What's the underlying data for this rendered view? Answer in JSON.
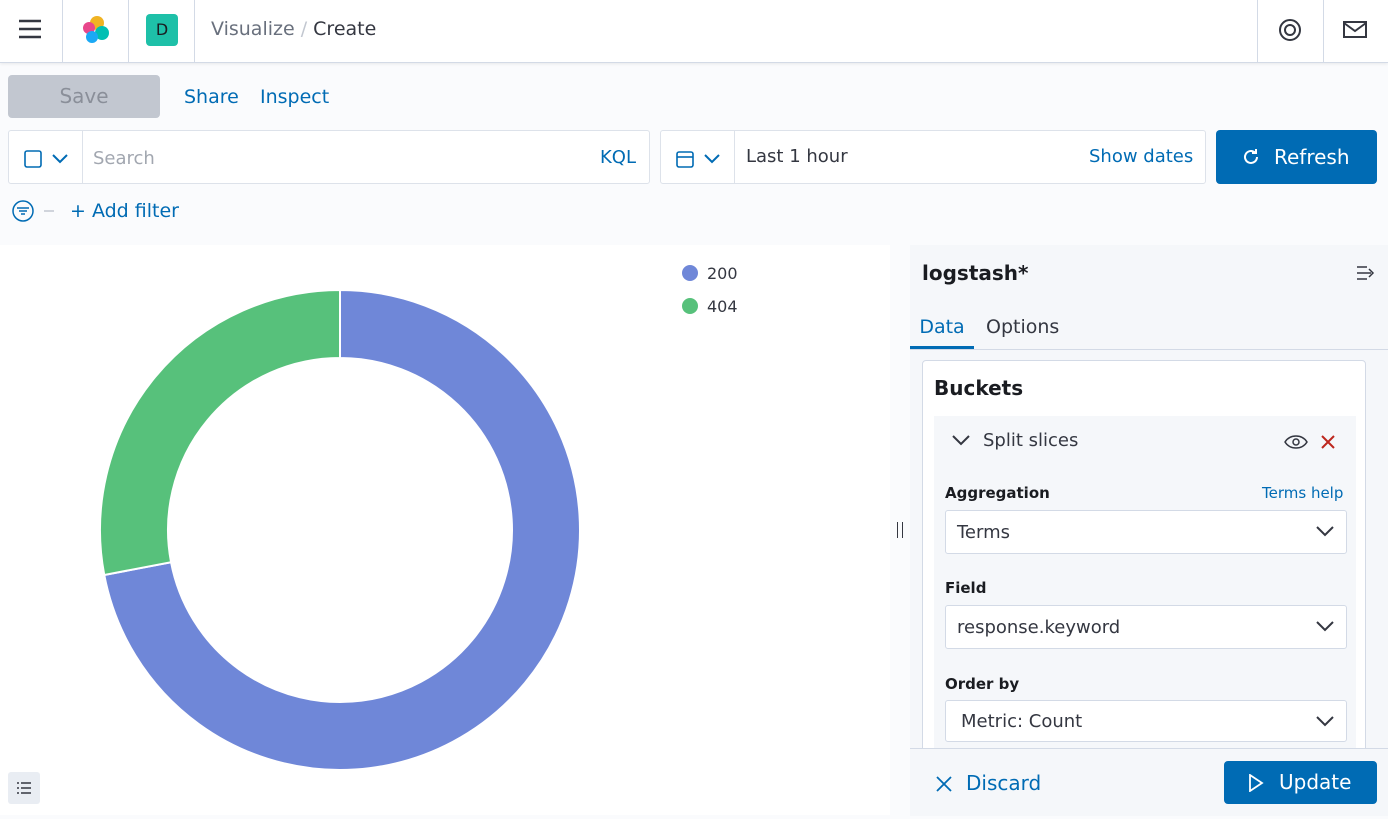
{
  "header": {
    "breadcrumbs": [
      "Visualize",
      "Create"
    ],
    "space_initial": "D"
  },
  "toolbar": {
    "save": "Save",
    "share": "Share",
    "inspect": "Inspect"
  },
  "query_bar": {
    "placeholder": "Search",
    "language": "KQL",
    "time_range": "Last 1 hour",
    "show_dates": "Show dates",
    "refresh": "Refresh",
    "add_filter": "+ Add filter"
  },
  "chart_data": {
    "type": "pie",
    "donut": true,
    "categories": [
      "200",
      "404"
    ],
    "values": [
      72,
      28
    ],
    "colors": [
      "#6f87d8",
      "#57c17b"
    ]
  },
  "sidebar": {
    "index_pattern": "logstash*",
    "tabs": [
      "Data",
      "Options"
    ],
    "section": "Buckets",
    "bucket": "Split slices",
    "fields": [
      {
        "label": "Aggregation",
        "value": "Terms",
        "help": "Terms help"
      },
      {
        "label": "Field",
        "value": "response.keyword"
      },
      {
        "label": "Order by",
        "value": "Metric: Count"
      }
    ],
    "discard": "Discard",
    "update": "Update"
  }
}
